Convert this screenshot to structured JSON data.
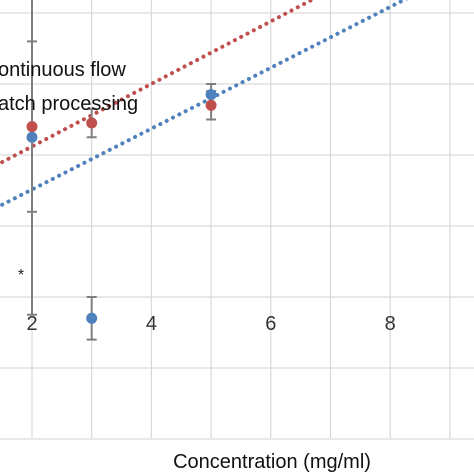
{
  "chart_data": {
    "type": "scatter",
    "xlabel": "Concentration (mg/ml)",
    "ylabel": "",
    "xlim": [
      1.5,
      9.9
    ],
    "ylim": [
      -2.5,
      7.6
    ],
    "x_ticks": [
      2,
      4,
      6,
      8
    ],
    "y_gridlines": [
      -2,
      -1,
      0,
      1,
      2,
      3,
      4,
      5,
      6,
      7
    ],
    "grid": true,
    "legend_position": "top-left",
    "legend": [
      {
        "label": "ontinuous flow",
        "color": "#4f81bd"
      },
      {
        "label": "atch processing",
        "color": "#c0504d"
      }
    ],
    "series": [
      {
        "name": "ontinuous flow",
        "color": "#4f81bd",
        "points": [
          {
            "x": 2,
            "y": 2.25,
            "err": 2.5
          },
          {
            "x": 3,
            "y": -0.3,
            "err": 0.3
          },
          {
            "x": 5,
            "y": 2.85,
            "err": 0.15
          }
        ],
        "trendline": {
          "x1": 1.5,
          "y1": 1.3,
          "x2": 9.9,
          "y2": 4.9
        }
      },
      {
        "name": "atch processing",
        "color": "#c0504d",
        "points": [
          {
            "x": 2,
            "y": 2.4,
            "err": 1.2
          },
          {
            "x": 3,
            "y": 2.45,
            "err": 0.2
          },
          {
            "x": 5,
            "y": 2.7,
            "err": 0.2
          }
        ],
        "trendline": {
          "x1": 1.5,
          "y1": 1.9,
          "x2": 9.9,
          "y2": 5.6
        }
      }
    ],
    "annotations": [
      "*"
    ]
  }
}
